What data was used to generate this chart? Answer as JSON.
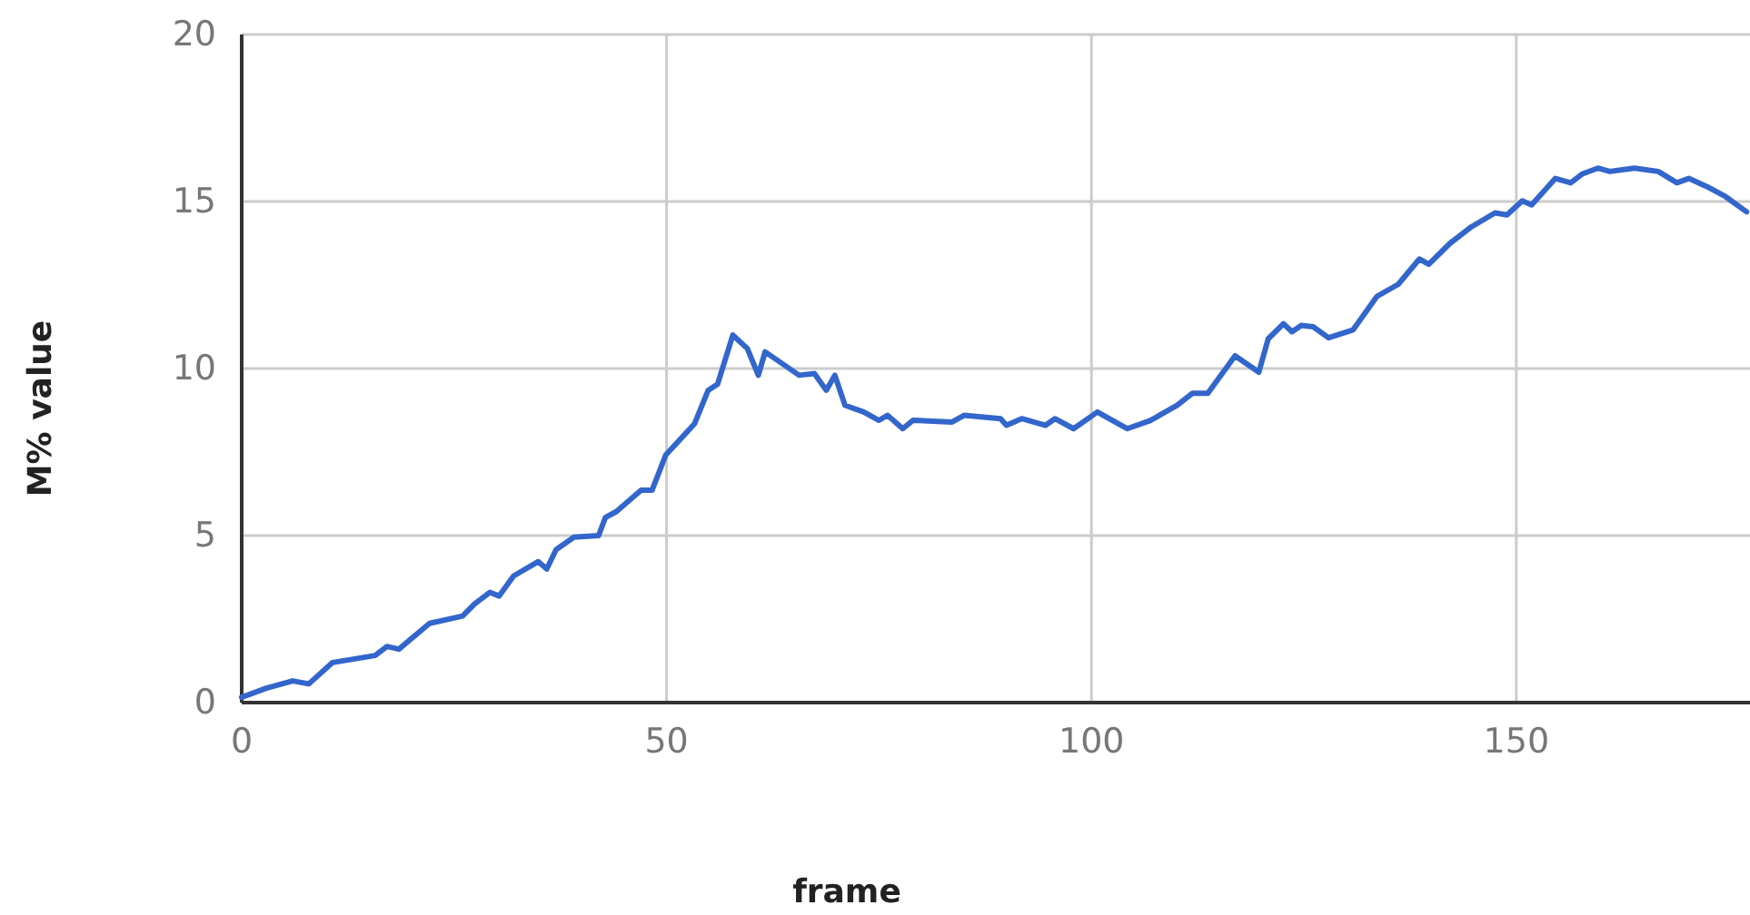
{
  "chart_data": {
    "type": "line",
    "xlabel": "frame",
    "ylabel": "M% value",
    "xlim": [
      0,
      177.5
    ],
    "ylim": [
      0,
      20
    ],
    "xticks": [
      0,
      50,
      100,
      150
    ],
    "yticks": [
      0,
      5,
      10,
      15,
      20
    ],
    "grid": true,
    "line_style": "solid",
    "marker": "none",
    "series": [
      {
        "color": "#3366cc",
        "x": [
          0,
          2.9,
          6,
          7.9,
          10.7,
          15.7,
          17.1,
          18.5,
          22.1,
          26,
          27.4,
          29.2,
          30.3,
          32,
          34.9,
          35.9,
          37,
          39.1,
          42,
          42.8,
          44.1,
          47,
          48.3,
          49.9,
          53.3,
          54.9,
          56,
          57.8,
          59.5,
          60.8,
          61.6,
          65.6,
          67.4,
          68.8,
          69.8,
          71,
          73.2,
          75,
          76,
          77.8,
          79,
          83.6,
          85,
          89.3,
          90,
          91.8,
          94.6,
          95.7,
          97.9,
          100.7,
          102.8,
          104.2,
          106.9,
          110.1,
          111.9,
          113.7,
          116.9,
          119.7,
          120.8,
          122.6,
          123.6,
          124.7,
          126.1,
          127.9,
          130.8,
          133.6,
          136.1,
          138.6,
          139.7,
          142.2,
          144.7,
          147.5,
          148.9,
          150.7,
          151.8,
          154.6,
          156.4,
          157.8,
          159.6,
          161,
          163.9,
          166.7,
          168.9,
          170.3,
          172.4,
          174.6,
          177.1
        ],
        "values": [
          0.16,
          0.43,
          0.65,
          0.56,
          1.2,
          1.41,
          1.68,
          1.6,
          2.37,
          2.59,
          2.95,
          3.3,
          3.19,
          3.79,
          4.22,
          4.0,
          4.58,
          4.95,
          5.0,
          5.54,
          5.72,
          6.36,
          6.36,
          7.41,
          8.35,
          9.35,
          9.53,
          11.0,
          10.6,
          9.8,
          10.5,
          9.8,
          9.85,
          9.35,
          9.8,
          8.9,
          8.7,
          8.45,
          8.6,
          8.2,
          8.45,
          8.4,
          8.6,
          8.5,
          8.3,
          8.5,
          8.3,
          8.5,
          8.2,
          8.7,
          8.4,
          8.2,
          8.44,
          8.9,
          9.26,
          9.26,
          10.38,
          9.89,
          10.89,
          11.34,
          11.1,
          11.29,
          11.25,
          10.92,
          11.16,
          12.16,
          12.52,
          13.28,
          13.12,
          13.75,
          14.24,
          14.66,
          14.6,
          15.02,
          14.9,
          15.69,
          15.56,
          15.83,
          16.0,
          15.9,
          16.0,
          15.9,
          15.56,
          15.69,
          15.45,
          15.15,
          14.69
        ]
      }
    ]
  }
}
